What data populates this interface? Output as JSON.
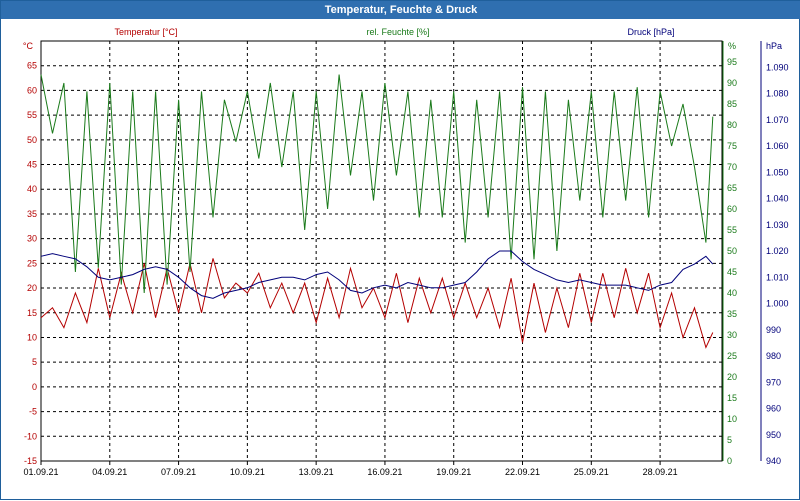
{
  "title": "Temperatur, Feuchte & Druck",
  "colors": {
    "titlebar": "#2f6fb0",
    "temperature": "#b40000",
    "humidity": "#1a7a1a",
    "pressure": "#00007a",
    "grid": "#000000"
  },
  "chart_data": {
    "type": "line",
    "title": "Temperatur, Feuchte & Druck",
    "grid": true,
    "x": {
      "start": "01.09.21",
      "end": "30.09.21",
      "tick_labels": [
        "01.09.21",
        "04.09.21",
        "07.09.21",
        "10.09.21",
        "13.09.21",
        "16.09.21",
        "19.09.21",
        "22.09.21",
        "25.09.21",
        "28.09.21"
      ]
    },
    "axes": {
      "temperature": {
        "label": "Temperatur [°C]",
        "unit": "°C",
        "ylim": [
          -15,
          70
        ],
        "ticks": [
          65,
          60,
          55,
          50,
          45,
          40,
          35,
          30,
          25,
          20,
          15,
          10,
          5,
          0,
          -5,
          -10,
          -15
        ]
      },
      "humidity": {
        "label": "rel. Feuchte [%]",
        "unit": "%",
        "ylim": [
          0,
          100
        ],
        "ticks": [
          95,
          90,
          85,
          80,
          75,
          70,
          65,
          60,
          55,
          50,
          45,
          40,
          35,
          30,
          25,
          20,
          15,
          10,
          5,
          0
        ]
      },
      "pressure": {
        "label": "Druck [hPa]",
        "unit": "hPa",
        "ylim": [
          940,
          1100
        ],
        "ticks": [
          1090,
          1080,
          1070,
          1060,
          1050,
          1040,
          1030,
          1020,
          1010,
          1000,
          990,
          980,
          970,
          960,
          950,
          940
        ]
      }
    },
    "series": [
      {
        "name": "Temperatur [°C]",
        "axis": "temperature",
        "day": [
          1,
          1.5,
          2,
          2.5,
          3,
          3.5,
          4,
          4.5,
          5,
          5.5,
          6,
          6.5,
          7,
          7.5,
          8,
          8.5,
          9,
          9.5,
          10,
          10.5,
          11,
          11.5,
          12,
          12.5,
          13,
          13.5,
          14,
          14.5,
          15,
          15.5,
          16,
          16.5,
          17,
          17.5,
          18,
          18.5,
          19,
          19.5,
          20,
          20.5,
          21,
          21.5,
          22,
          22.5,
          23,
          23.5,
          24,
          24.5,
          25,
          25.5,
          26,
          26.5,
          27,
          27.5,
          28,
          28.5,
          29,
          29.5,
          30,
          30.3
        ],
        "values": [
          14,
          16,
          12,
          19,
          13,
          24,
          14,
          23,
          15,
          25,
          14,
          24,
          15,
          25,
          15,
          26,
          18,
          21,
          19,
          23,
          16,
          21,
          15,
          21,
          13,
          22,
          14,
          24,
          16,
          20,
          14,
          23,
          13,
          22,
          15,
          22,
          14,
          21,
          14,
          20,
          12,
          22,
          9,
          21,
          11,
          20,
          12,
          23,
          13,
          23,
          14,
          24,
          15,
          23,
          12,
          19,
          10,
          16,
          8,
          11
        ]
      },
      {
        "name": "rel. Feuchte [%]",
        "axis": "humidity",
        "day": [
          1,
          1.5,
          2,
          2.5,
          3,
          3.5,
          4,
          4.5,
          5,
          5.5,
          6,
          6.5,
          7,
          7.5,
          8,
          8.5,
          9,
          9.5,
          10,
          10.5,
          11,
          11.5,
          12,
          12.5,
          13,
          13.5,
          14,
          14.5,
          15,
          15.5,
          16,
          16.5,
          17,
          17.5,
          18,
          18.5,
          19,
          19.5,
          20,
          20.5,
          21,
          21.5,
          22,
          22.5,
          23,
          23.5,
          24,
          24.5,
          25,
          25.5,
          26,
          26.5,
          27,
          27.5,
          28,
          28.5,
          29,
          29.5,
          30,
          30.3
        ],
        "values": [
          92,
          78,
          90,
          45,
          88,
          46,
          90,
          42,
          88,
          40,
          88,
          42,
          86,
          45,
          88,
          58,
          86,
          76,
          88,
          72,
          90,
          70,
          88,
          55,
          88,
          60,
          92,
          68,
          88,
          62,
          90,
          68,
          88,
          58,
          86,
          58,
          88,
          52,
          86,
          58,
          88,
          48,
          89,
          48,
          88,
          50,
          86,
          62,
          88,
          58,
          88,
          62,
          89,
          58,
          88,
          75,
          85,
          70,
          52,
          82
        ]
      },
      {
        "name": "Druck [hPa]",
        "axis": "pressure",
        "day": [
          1,
          1.5,
          2,
          2.5,
          3,
          3.5,
          4,
          4.5,
          5,
          5.5,
          6,
          6.5,
          7,
          7.5,
          8,
          8.5,
          9,
          9.5,
          10,
          10.5,
          11,
          11.5,
          12,
          12.5,
          13,
          13.5,
          14,
          14.5,
          15,
          15.5,
          16,
          16.5,
          17,
          17.5,
          18,
          18.5,
          19,
          19.5,
          20,
          20.5,
          21,
          21.5,
          22,
          22.5,
          23,
          23.5,
          24,
          24.5,
          25,
          25.5,
          26,
          26.5,
          27,
          27.5,
          28,
          28.5,
          29,
          29.5,
          30,
          30.3
        ],
        "values": [
          1018,
          1019,
          1018,
          1017,
          1014,
          1010,
          1009,
          1010,
          1011,
          1013,
          1014,
          1013,
          1010,
          1006,
          1003,
          1002,
          1004,
          1005,
          1006,
          1008,
          1009,
          1010,
          1010,
          1009,
          1011,
          1012,
          1009,
          1005,
          1004,
          1006,
          1007,
          1006,
          1008,
          1007,
          1006,
          1006,
          1007,
          1008,
          1012,
          1017,
          1020,
          1020,
          1016,
          1013,
          1011,
          1009,
          1008,
          1009,
          1008,
          1007,
          1007,
          1007,
          1006,
          1005,
          1007,
          1008,
          1013,
          1015,
          1018,
          1015
        ]
      }
    ]
  }
}
